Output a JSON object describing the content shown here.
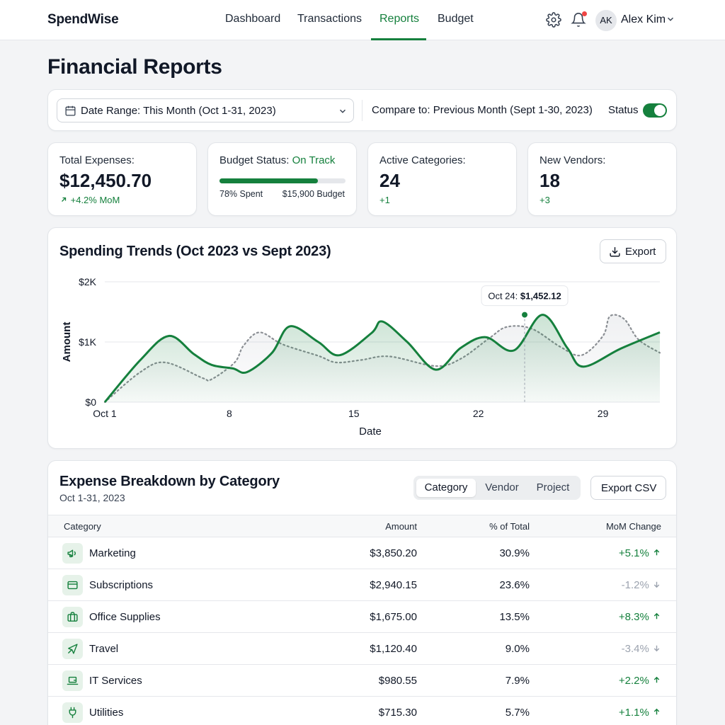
{
  "app": {
    "brand": "SpendWise"
  },
  "nav": {
    "tabs": [
      "Dashboard",
      "Transactions",
      "Reports",
      "Budget"
    ],
    "active": "Reports"
  },
  "user": {
    "initials": "AK",
    "name": "Alex Kim"
  },
  "page": {
    "title": "Financial Reports"
  },
  "filters": {
    "date_range": "Date Range: This Month (Oct 1-31, 2023)",
    "compare": "Compare to: Previous Month (Sept 1-30, 2023)",
    "status_label": "Status",
    "status_on": true
  },
  "kpis": {
    "total_expenses": {
      "label": "Total Expenses:",
      "value": "$12,450.70",
      "delta": "+4.2% MoM"
    },
    "budget_status": {
      "label": "Budget Status:",
      "status": "On Track",
      "spent_fraction": 0.78,
      "spent_text": "78% Spent",
      "budget_text": "$15,900 Budget"
    },
    "active_categories": {
      "label": "Active Categories:",
      "value": "24",
      "delta": "+1"
    },
    "new_vendors": {
      "label": "New Vendors:",
      "value": "18",
      "delta": "+3"
    }
  },
  "trend": {
    "title": "Spending Trends (Oct 2023 vs Sept 2023)",
    "export_label": "Export",
    "tooltip": {
      "label": "Oct 24:",
      "value": "$1,452.12"
    }
  },
  "chart_data": {
    "type": "area",
    "title": "Spending Trends (Oct 2023 vs Sept 2023)",
    "xlabel": "Date",
    "ylabel": "Amount",
    "x_ticks": [
      {
        "value": 1,
        "label": "Oct 1"
      },
      {
        "value": 8,
        "label": "8"
      },
      {
        "value": 15,
        "label": "15"
      },
      {
        "value": 22,
        "label": "22"
      },
      {
        "value": 29,
        "label": "29"
      }
    ],
    "y_ticks": [
      {
        "value": 0,
        "label": "$0"
      },
      {
        "value": 1000,
        "label": "$1K"
      },
      {
        "value": 2000,
        "label": "$2K"
      }
    ],
    "xlim": [
      1,
      32.2
    ],
    "ylim": [
      0,
      2000
    ],
    "grid": true,
    "series": [
      {
        "style": "solid-area",
        "color": "#15803d",
        "points": [
          [
            1,
            0
          ],
          [
            3,
            700
          ],
          [
            4.6,
            1100
          ],
          [
            6,
            800
          ],
          [
            7,
            620
          ],
          [
            8.2,
            560
          ],
          [
            9,
            500
          ],
          [
            10.4,
            820
          ],
          [
            11.4,
            1260
          ],
          [
            13,
            1000
          ],
          [
            14.2,
            780
          ],
          [
            16,
            1150
          ],
          [
            16.6,
            1340
          ],
          [
            18,
            1000
          ],
          [
            19.6,
            540
          ],
          [
            21,
            900
          ],
          [
            22.4,
            1080
          ],
          [
            24,
            860
          ],
          [
            25.6,
            1452
          ],
          [
            27,
            900
          ],
          [
            27.9,
            590
          ],
          [
            30,
            890
          ],
          [
            32.2,
            1160
          ]
        ]
      },
      {
        "style": "dotted",
        "color": "#8b8f94",
        "points": [
          [
            1,
            0
          ],
          [
            3,
            500
          ],
          [
            4.4,
            660
          ],
          [
            6.5,
            400
          ],
          [
            7,
            380
          ],
          [
            8.3,
            660
          ],
          [
            8.8,
            940
          ],
          [
            9.7,
            1160
          ],
          [
            11,
            960
          ],
          [
            13,
            770
          ],
          [
            14,
            660
          ],
          [
            15.4,
            700
          ],
          [
            17,
            760
          ],
          [
            19.6,
            600
          ],
          [
            21,
            720
          ],
          [
            22.6,
            1060
          ],
          [
            23.6,
            1250
          ],
          [
            25,
            1220
          ],
          [
            26.6,
            920
          ],
          [
            27.8,
            780
          ],
          [
            29,
            1100
          ],
          [
            29.4,
            1430
          ],
          [
            30.2,
            1380
          ],
          [
            31,
            1040
          ],
          [
            32.2,
            820
          ]
        ]
      }
    ],
    "highlight": {
      "x": 24.6,
      "y": 1452.12
    }
  },
  "breakdown": {
    "title": "Expense Breakdown by Category",
    "subtitle": "Oct 1-31, 2023",
    "tabs": [
      "Category",
      "Vendor",
      "Project"
    ],
    "active_tab": "Category",
    "export_label": "Export CSV",
    "columns": [
      "Category",
      "Amount",
      "% of Total",
      "MoM Change"
    ],
    "rows": [
      {
        "category": "Marketing",
        "icon": "megaphone-icon",
        "amount": "$3,850.20",
        "pct": "30.9%",
        "change": "+5.1%",
        "dir": "up"
      },
      {
        "category": "Subscriptions",
        "icon": "credit-card-icon",
        "amount": "$2,940.15",
        "pct": "23.6%",
        "change": "-1.2%",
        "dir": "down"
      },
      {
        "category": "Office Supplies",
        "icon": "briefcase-icon",
        "amount": "$1,675.00",
        "pct": "13.5%",
        "change": "+8.3%",
        "dir": "up"
      },
      {
        "category": "Travel",
        "icon": "plane-icon",
        "amount": "$1,120.40",
        "pct": "9.0%",
        "change": "-3.4%",
        "dir": "down"
      },
      {
        "category": "IT Services",
        "icon": "laptop-icon",
        "amount": "$980.55",
        "pct": "7.9%",
        "change": "+2.2%",
        "dir": "up"
      },
      {
        "category": "Utilities",
        "icon": "plug-icon",
        "amount": "$715.30",
        "pct": "5.7%",
        "change": "+1.1%",
        "dir": "up"
      }
    ]
  },
  "colors": {
    "accent": "#15803d",
    "negative_muted": "#9ca3af",
    "alert_dot": "#ef4444"
  }
}
